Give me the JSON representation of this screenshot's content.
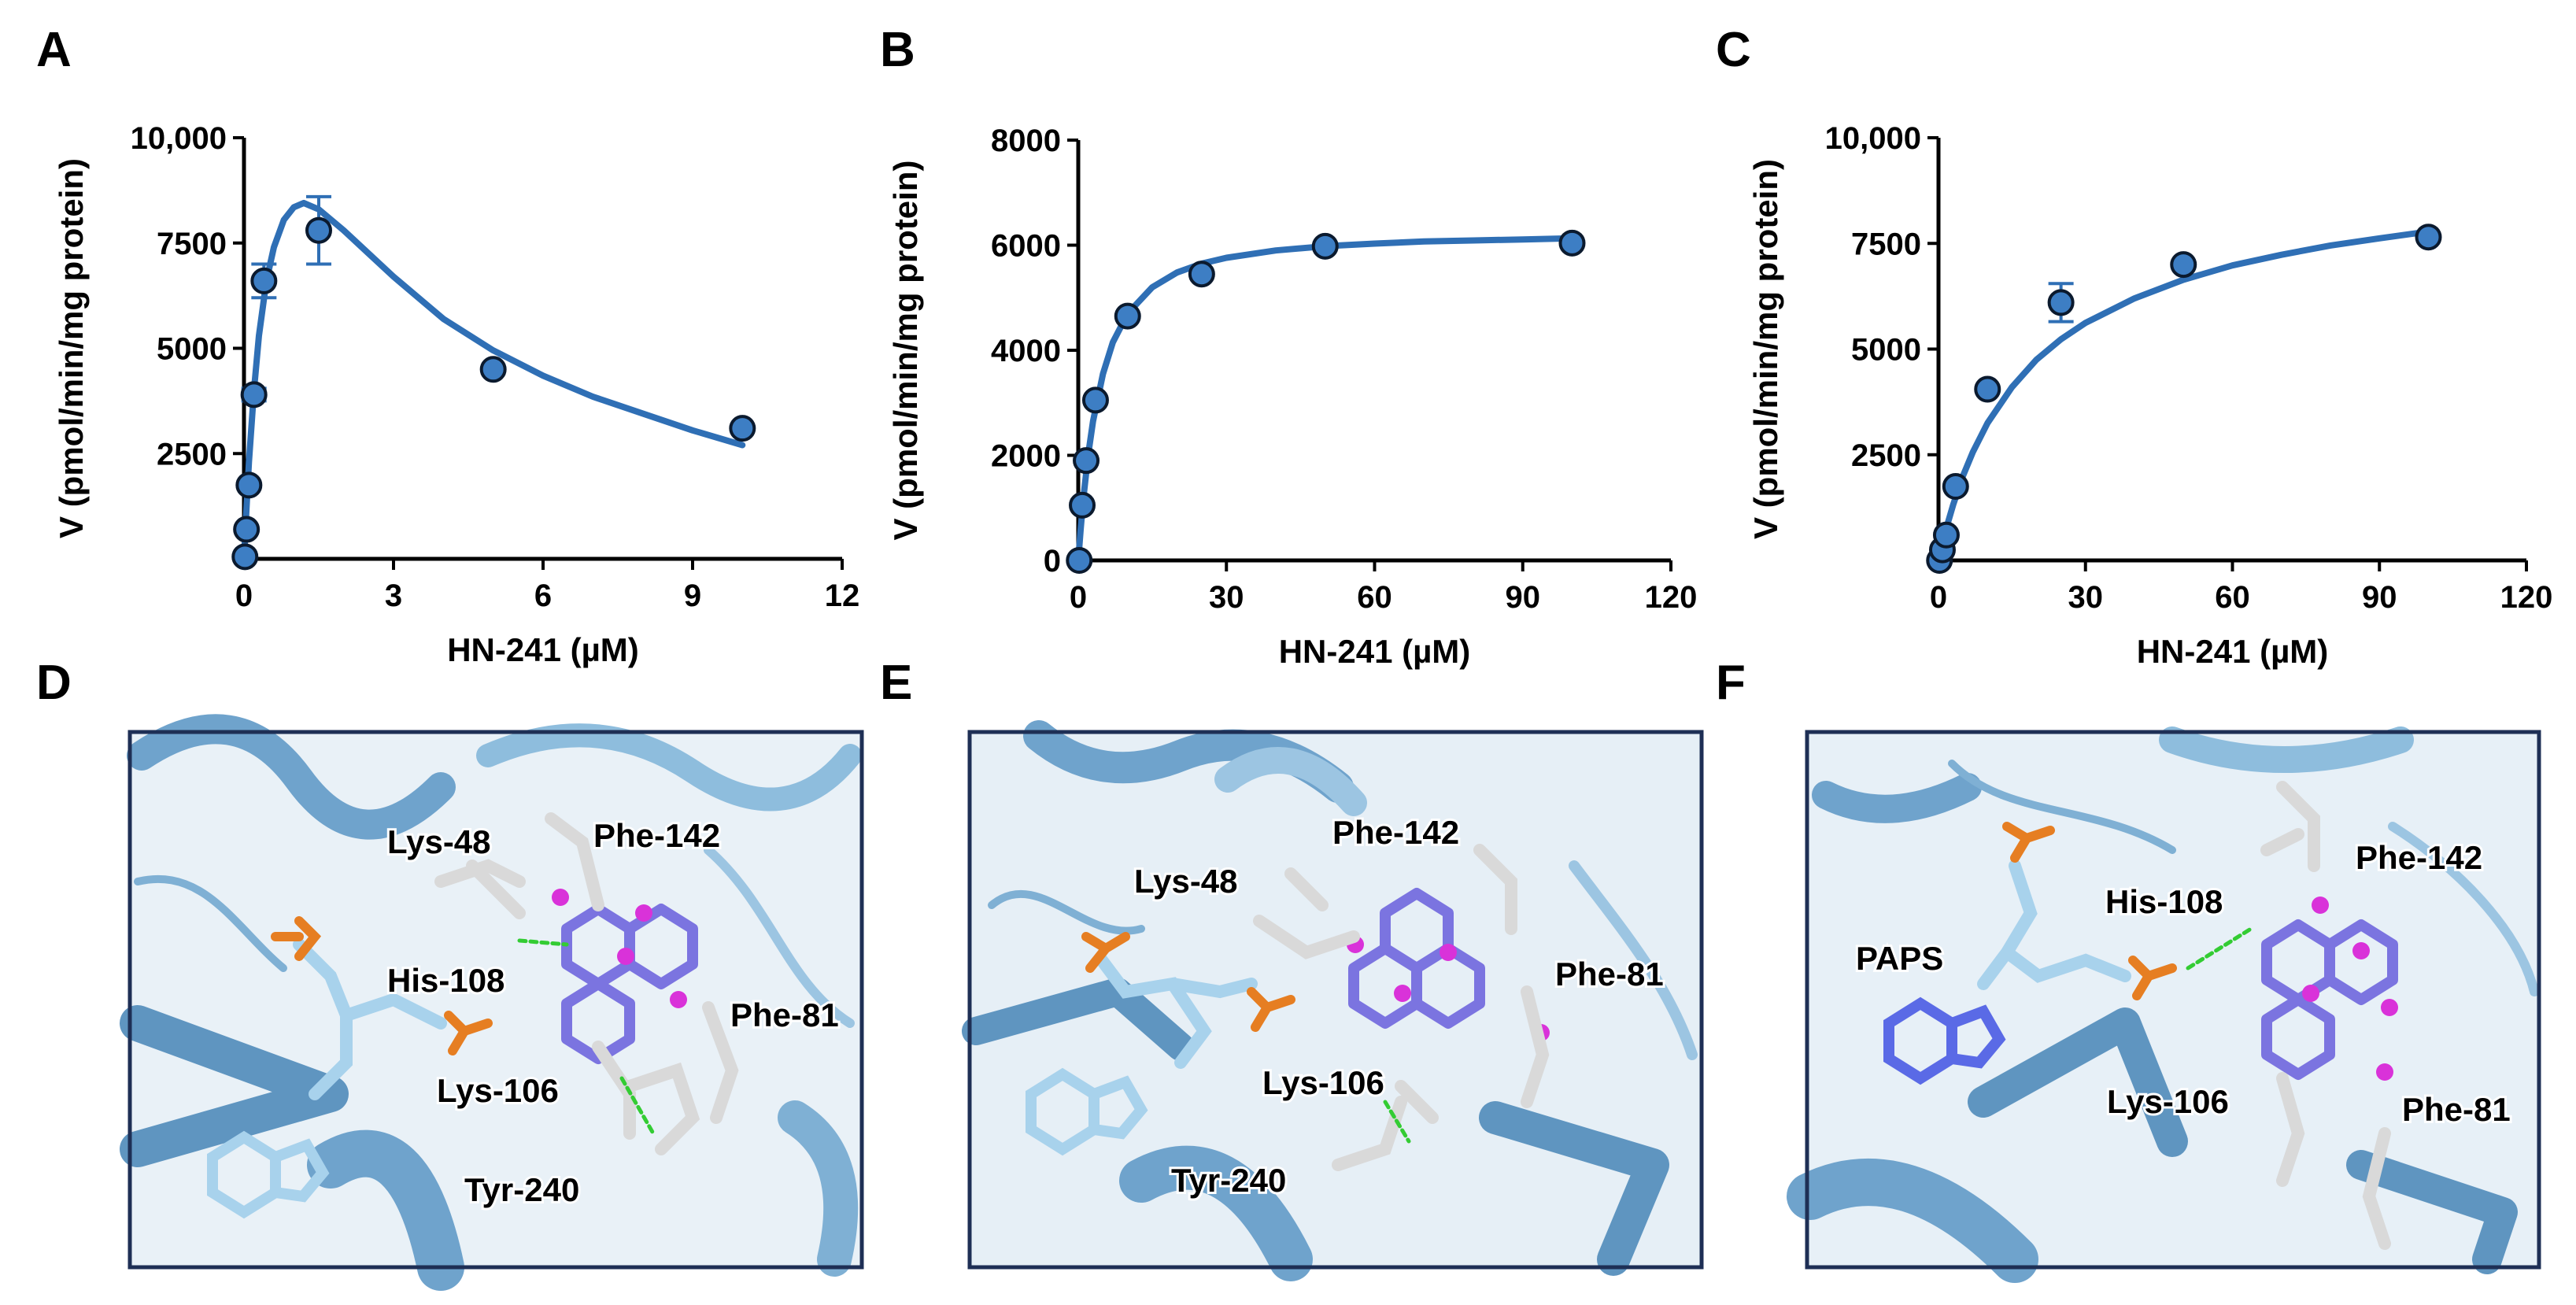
{
  "panel_labels": [
    "A",
    "B",
    "C",
    "D",
    "E",
    "F"
  ],
  "colors": {
    "curve": "#2f6fb5",
    "marker_fill": "#3d7ec4",
    "marker_edge": "#0b1a2e",
    "axis": "#000000",
    "helix": "#7fb0d4",
    "ligand": "#7b74e0",
    "carbon_white": "#d9d9d9",
    "oxygen": "#e02020",
    "phosphorus": "#e67e22",
    "nitrogen": "#2a3bd4",
    "pi_sphere": "#d932d9",
    "hbond": "#33cc33",
    "box_border": "#1e2f55"
  },
  "chart_data": [
    {
      "panel": "A",
      "type": "scatter",
      "fit": "substrate-inhibition",
      "xlabel": "HN-241 (µM)",
      "ylabel": "V (pmol/min/mg protein)",
      "xlim": [
        0,
        12
      ],
      "ylim": [
        0,
        10000
      ],
      "xticks": [
        0,
        3,
        6,
        9,
        12
      ],
      "xtick_labels": [
        "0",
        "3",
        "6",
        "9",
        "12"
      ],
      "yticks": [
        2500,
        5000,
        7500,
        10000
      ],
      "ytick_labels": [
        "2500",
        "5000",
        "7500",
        "10,000"
      ],
      "x": [
        0.02,
        0.05,
        0.1,
        0.2,
        0.4,
        1.5,
        5,
        10
      ],
      "y": [
        50,
        700,
        1750,
        3900,
        6600,
        7800,
        4500,
        3100
      ],
      "yerr": [
        0,
        0,
        0,
        150,
        400,
        800,
        0,
        0
      ],
      "curve_x": [
        0,
        0.05,
        0.1,
        0.2,
        0.3,
        0.45,
        0.6,
        0.8,
        1.0,
        1.2,
        1.5,
        2,
        2.5,
        3,
        4,
        5,
        6,
        7,
        8,
        9,
        10
      ],
      "curve_y": [
        0,
        1200,
        2300,
        4000,
        5300,
        6600,
        7400,
        8050,
        8350,
        8450,
        8300,
        7800,
        7250,
        6700,
        5700,
        4950,
        4350,
        3850,
        3450,
        3050,
        2700
      ]
    },
    {
      "panel": "B",
      "type": "scatter",
      "fit": "michaelis-menten",
      "xlabel": "HN-241 (µM)",
      "ylabel": "V (pmol/min/mg protein)",
      "xlim": [
        0,
        120
      ],
      "ylim": [
        0,
        8000
      ],
      "xticks": [
        0,
        30,
        60,
        90,
        120
      ],
      "xtick_labels": [
        "0",
        "30",
        "60",
        "90",
        "120"
      ],
      "yticks": [
        0,
        2000,
        4000,
        6000,
        8000
      ],
      "ytick_labels": [
        "0",
        "2000",
        "4000",
        "6000",
        "8000"
      ],
      "x": [
        0.2,
        0.8,
        1.6,
        3.5,
        10,
        25,
        50,
        100
      ],
      "y": [
        0,
        1050,
        1900,
        3050,
        4650,
        5450,
        5980,
        6040
      ],
      "yerr": [
        0,
        0,
        0,
        0,
        0,
        0,
        0,
        0
      ],
      "curve_x": [
        0,
        0.5,
        1,
        2,
        3,
        5,
        7,
        10,
        15,
        20,
        25,
        30,
        40,
        50,
        60,
        70,
        80,
        90,
        100
      ],
      "curve_y": [
        0,
        600,
        1150,
        2000,
        2650,
        3550,
        4150,
        4700,
        5200,
        5480,
        5650,
        5760,
        5900,
        5980,
        6030,
        6070,
        6090,
        6110,
        6130
      ]
    },
    {
      "panel": "C",
      "type": "scatter",
      "fit": "michaelis-menten",
      "xlabel": "HN-241 (µM)",
      "ylabel": "V (pmol/min/mg protein)",
      "xlim": [
        0,
        120
      ],
      "ylim": [
        0,
        10000
      ],
      "xticks": [
        0,
        30,
        60,
        90,
        120
      ],
      "xtick_labels": [
        "0",
        "30",
        "60",
        "90",
        "120"
      ],
      "yticks": [
        2500,
        5000,
        7500,
        10000
      ],
      "ytick_labels": [
        "2500",
        "5000",
        "7500",
        "10,000"
      ],
      "x": [
        0.2,
        0.8,
        1.6,
        3.5,
        10,
        25,
        50,
        100
      ],
      "y": [
        0,
        250,
        600,
        1750,
        4050,
        6100,
        7000,
        7650
      ],
      "yerr": [
        0,
        0,
        0,
        0,
        0,
        450,
        0,
        0
      ],
      "curve_x": [
        0,
        1,
        2,
        3,
        5,
        7,
        10,
        15,
        20,
        25,
        30,
        40,
        50,
        60,
        70,
        80,
        90,
        100
      ],
      "curve_y": [
        0,
        480,
        920,
        1320,
        2000,
        2560,
        3250,
        4100,
        4750,
        5230,
        5620,
        6200,
        6640,
        6980,
        7230,
        7450,
        7620,
        7780
      ]
    }
  ],
  "molecular_panels": [
    {
      "panel": "D",
      "residue_labels": [
        "Lys-48",
        "Phe-142",
        "His-108",
        "Phe-81",
        "Lys-106",
        "Tyr-240"
      ]
    },
    {
      "panel": "E",
      "residue_labels": [
        "Phe-142",
        "Lys-48",
        "Phe-81",
        "Lys-106",
        "Tyr-240"
      ]
    },
    {
      "panel": "F",
      "residue_labels": [
        "Phe-142",
        "His-108",
        "PAPS",
        "Lys-106",
        "Phe-81"
      ]
    }
  ]
}
